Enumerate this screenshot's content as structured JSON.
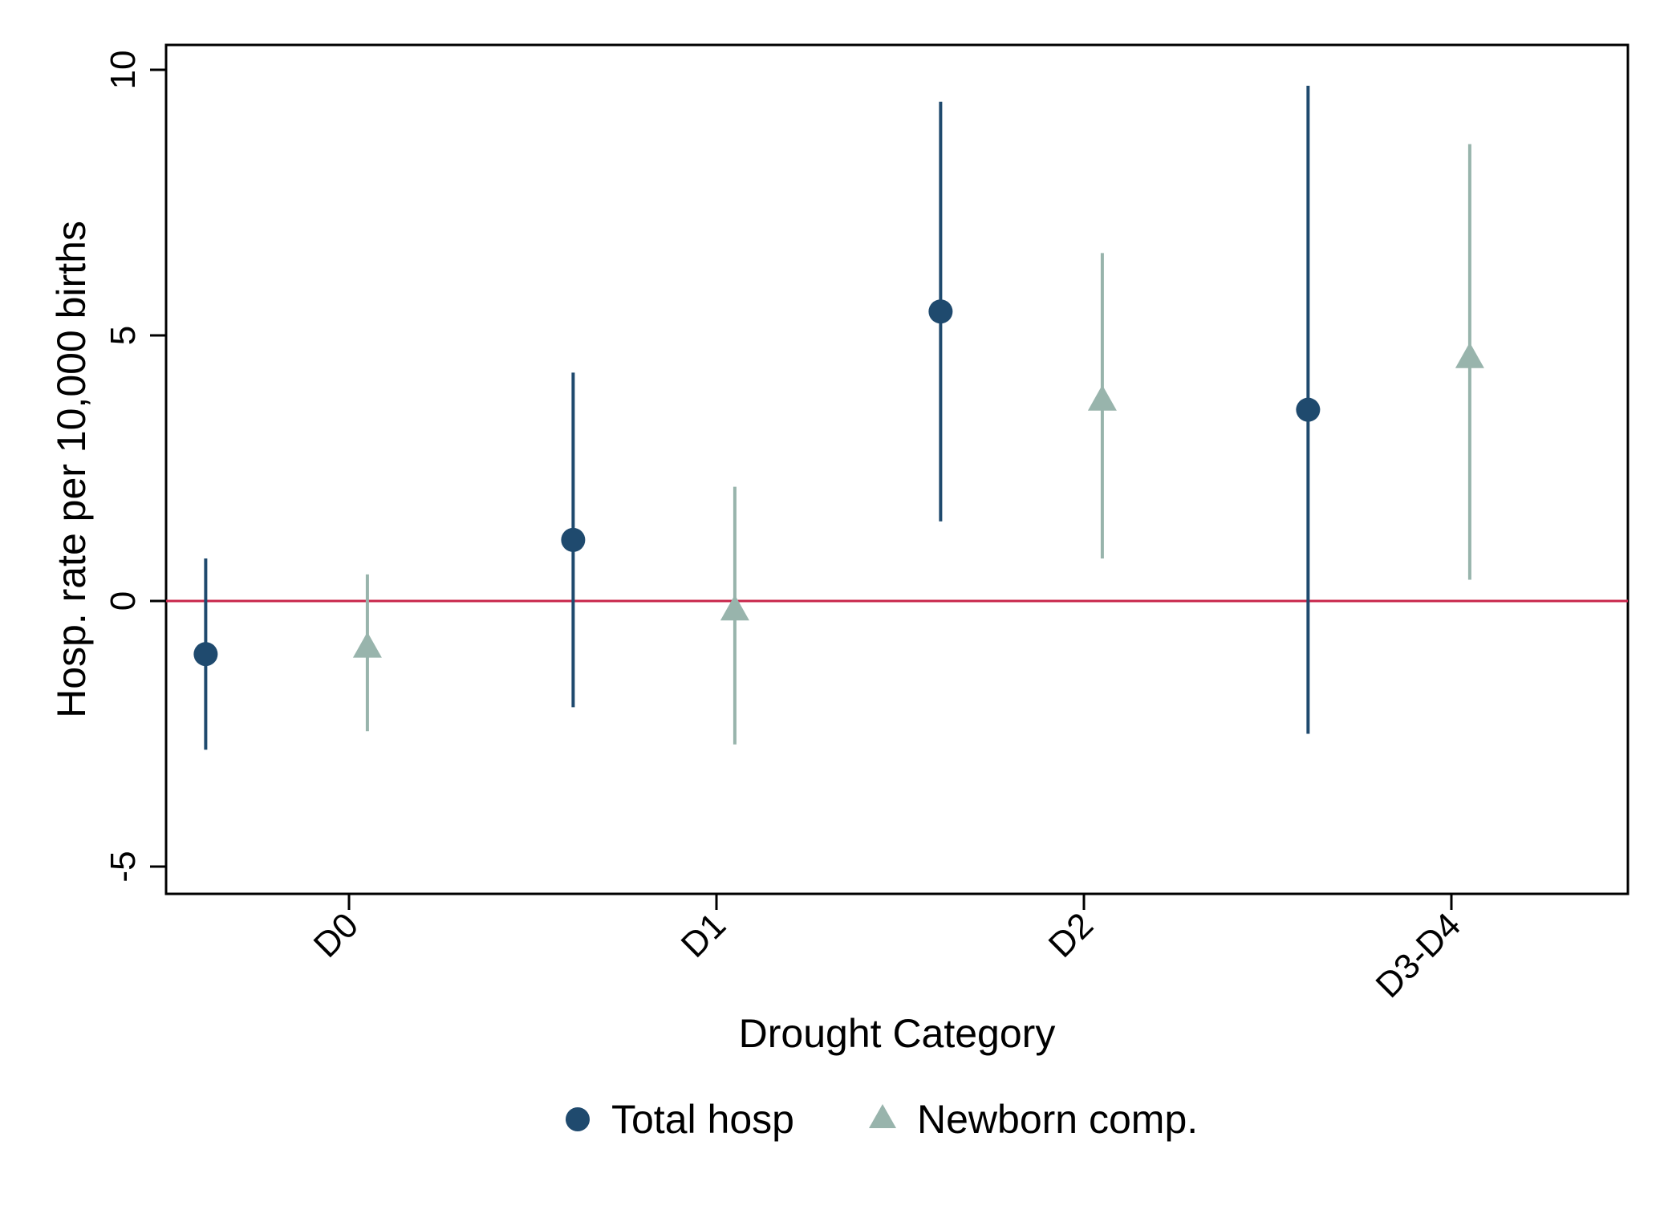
{
  "chart_data": {
    "type": "scatter",
    "subtype": "coefficient plot with confidence intervals",
    "xlabel": "Drought Category",
    "ylabel": "Hosp. rate per 10,000 births",
    "categories": [
      "D0",
      "D1",
      "D2",
      "D3-D4"
    ],
    "ylim": [
      -5.5,
      10.5
    ],
    "yticks": [
      -5,
      0,
      5,
      10
    ],
    "ytick_labels": [
      "-5",
      "0",
      "5",
      "10"
    ],
    "reference_line": {
      "y": 0,
      "color": "#c8254a"
    },
    "grid": false,
    "legend_position": "bottom",
    "series": [
      {
        "name": "Total hosp",
        "marker": "circle",
        "color": "#1f4a6e",
        "offset": -0.39,
        "points": [
          {
            "category": "D0",
            "estimate": -1.0,
            "ci_low": -2.8,
            "ci_high": 0.8
          },
          {
            "category": "D1",
            "estimate": 1.15,
            "ci_low": -2.0,
            "ci_high": 4.3
          },
          {
            "category": "D2",
            "estimate": 5.45,
            "ci_low": 1.5,
            "ci_high": 9.4
          },
          {
            "category": "D3-D4",
            "estimate": 3.6,
            "ci_low": -2.5,
            "ci_high": 9.7
          }
        ]
      },
      {
        "name": "Newborn comp.",
        "marker": "triangle",
        "color": "#98b4ac",
        "offset": 0.05,
        "points": [
          {
            "category": "D0",
            "estimate": -0.9,
            "ci_low": -2.45,
            "ci_high": 0.5
          },
          {
            "category": "D1",
            "estimate": -0.2,
            "ci_low": -2.7,
            "ci_high": 2.15
          },
          {
            "category": "D2",
            "estimate": 3.75,
            "ci_low": 0.8,
            "ci_high": 6.55
          },
          {
            "category": "D3-D4",
            "estimate": 4.55,
            "ci_low": 0.4,
            "ci_high": 8.6
          }
        ]
      }
    ]
  }
}
